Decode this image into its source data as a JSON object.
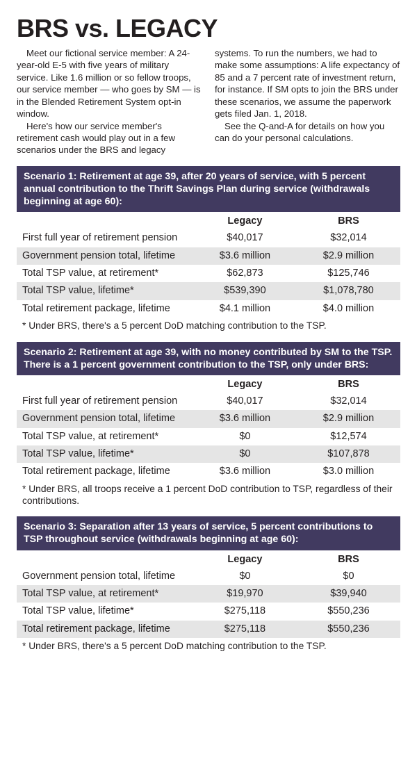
{
  "title": "BRS vs. LEGACY",
  "intro": {
    "p1": "Meet our fictional service member: A 24-year-old E-5 with five years of military service. Like 1.6 million or so fellow troops, our service member — who goes by SM — is in the Blended Retirement System opt-in window.",
    "p2": "Here's how our service member's retirement cash would play out in a few scenarios under the BRS and legacy systems. To run the numbers, we had to make some assumptions: A life expectancy of 85 and a 7 percent rate of investment return, for instance. If SM opts to join the BRS under these scenarios, we assume the paperwork gets filed Jan. 1, 2018.",
    "p3": "See the Q-and-A for details on how you can do your personal calculations."
  },
  "columns": {
    "col1": "",
    "col2": "Legacy",
    "col3": "BRS"
  },
  "colors": {
    "header_bg": "#413a60",
    "header_text": "#ffffff",
    "row_shade": "#e5e5e5",
    "row_noshade": "#ffffff",
    "text": "#231f20"
  },
  "scenarios": [
    {
      "header": "Scenario 1: Retirement at age 39, after 20 years of service, with 5 percent annual contribution to the Thrift Savings Plan during service (withdrawals beginning at age 60):",
      "rows": [
        {
          "label": "First full year of retirement pension",
          "legacy": "$40,017",
          "brs": "$32,014",
          "shade": false
        },
        {
          "label": "Government pension total, lifetime",
          "legacy": "$3.6 million",
          "brs": "$2.9 million",
          "shade": true
        },
        {
          "label": "Total TSP value, at retirement*",
          "legacy": "$62,873",
          "brs": "$125,746",
          "shade": false
        },
        {
          "label": "Total TSP value, lifetime*",
          "legacy": "$539,390",
          "brs": "$1,078,780",
          "shade": true
        },
        {
          "label": "Total retirement package, lifetime",
          "legacy": "$4.1 million",
          "brs": "$4.0 million",
          "shade": false
        }
      ],
      "footnote": "* Under BRS, there's a 5 percent DoD matching contribution to the TSP."
    },
    {
      "header": "Scenario 2: Retirement at age 39, with no money contributed by SM to the TSP. There is a 1 percent government contribution to the TSP, only under BRS:",
      "rows": [
        {
          "label": "First full year of retirement pension",
          "legacy": "$40,017",
          "brs": "$32,014",
          "shade": false
        },
        {
          "label": "Government pension total, lifetime",
          "legacy": "$3.6 million",
          "brs": "$2.9 million",
          "shade": true
        },
        {
          "label": "Total TSP value, at retirement*",
          "legacy": "$0",
          "brs": "$12,574",
          "shade": false
        },
        {
          "label": "Total TSP value, lifetime*",
          "legacy": "$0",
          "brs": "$107,878",
          "shade": true
        },
        {
          "label": "Total retirement package, lifetime",
          "legacy": "$3.6 million",
          "brs": "$3.0 million",
          "shade": false
        }
      ],
      "footnote": "* Under BRS, all troops receive a 1 percent DoD contribution to TSP, regardless of their contributions."
    },
    {
      "header": "Scenario 3: Separation after 13 years of service, 5 percent contributions to TSP throughout service (withdrawals beginning at age 60):",
      "rows": [
        {
          "label": "Government pension total, lifetime",
          "legacy": "$0",
          "brs": "$0",
          "shade": false
        },
        {
          "label": "Total TSP value, at retirement*",
          "legacy": "$19,970",
          "brs": "$39,940",
          "shade": true
        },
        {
          "label": "Total TSP value, lifetime*",
          "legacy": "$275,118",
          "brs": "$550,236",
          "shade": false
        },
        {
          "label": "Total retirement package, lifetime",
          "legacy": "$275,118",
          "brs": "$550,236",
          "shade": true
        }
      ],
      "footnote": "* Under BRS, there's a 5 percent DoD matching contribution to the TSP."
    }
  ]
}
